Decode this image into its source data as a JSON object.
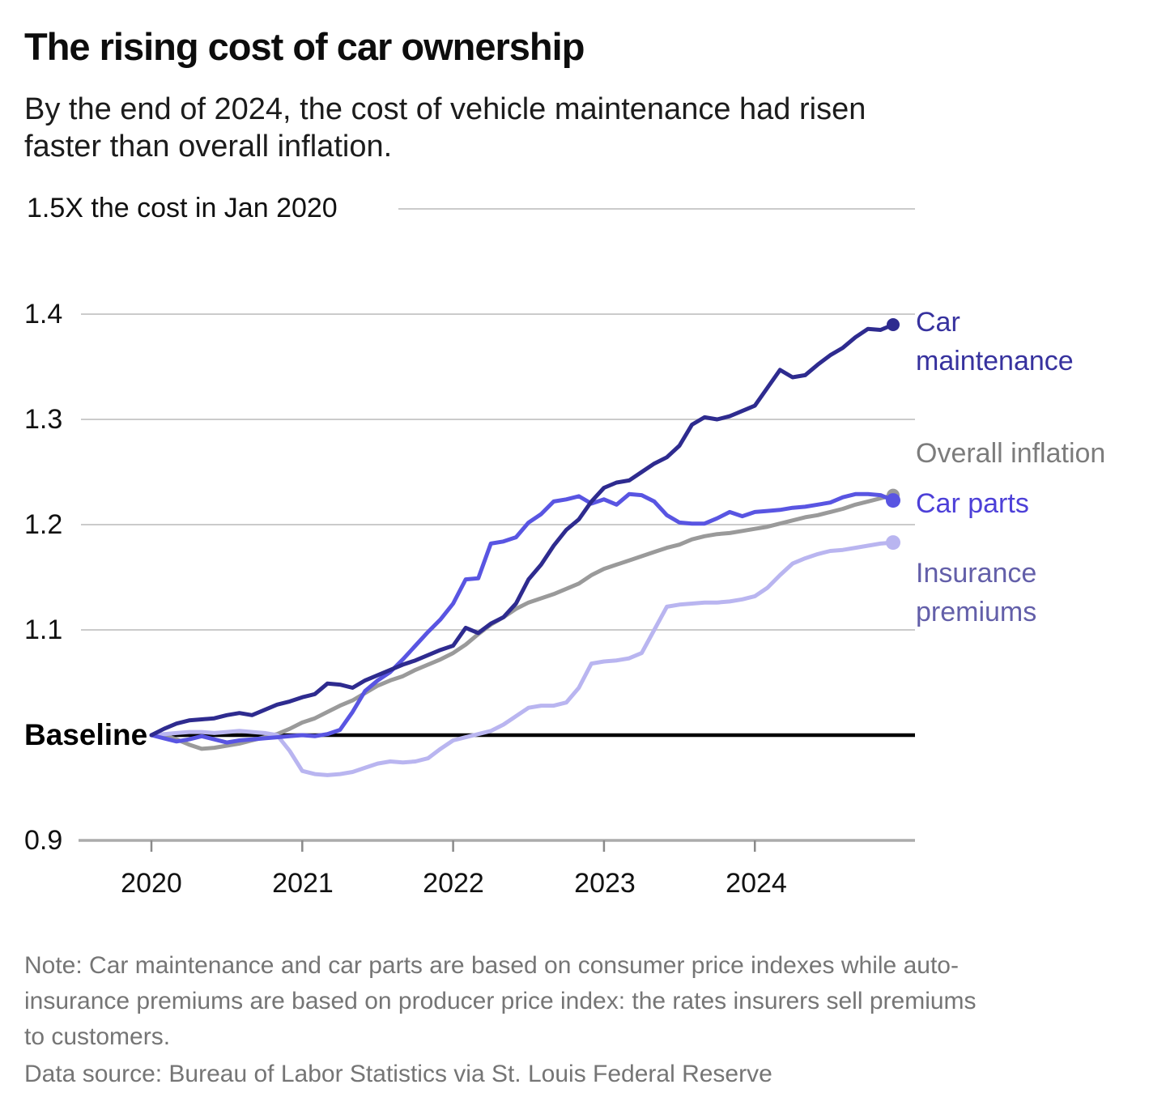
{
  "header": {
    "title": "The rising cost of car ownership",
    "subtitle": "By the end of 2024, the cost of vehicle maintenance had risen\nfaster than overall inflation."
  },
  "chart": {
    "y_axis": {
      "top_label": "1.5X the cost in Jan 2020",
      "tick_14": "1.4",
      "tick_13": "1.3",
      "tick_12": "1.2",
      "tick_11": "1.1",
      "tick_09": "0.9",
      "baseline_label": "Baseline"
    },
    "x_axis": {
      "ticks": [
        "2020",
        "2021",
        "2022",
        "2023",
        "2024"
      ]
    }
  },
  "chart_data": {
    "type": "line",
    "title": "The rising cost of car ownership",
    "x_unit": "month",
    "x_start": "2020-01",
    "x_end": "2024-12",
    "xlabel_ticks": [
      "2020",
      "2021",
      "2022",
      "2023",
      "2024"
    ],
    "ylabel": "Multiple of the cost in Jan 2020",
    "ylim": [
      0.9,
      1.5
    ],
    "baseline": 1.0,
    "grid": "horizontal",
    "legend_position": "right-of-line-ends",
    "colors": {
      "gridline": "#cbcbcb",
      "baseline": "#000000",
      "bottom_axis": "#ababab"
    },
    "series": [
      {
        "name": "Overall inflation",
        "color": "#9a9a9a",
        "label_color": "#7c7c7c",
        "end_value": 1.228,
        "values": [
          1.0,
          1.0,
          0.996,
          0.991,
          0.987,
          0.988,
          0.99,
          0.992,
          0.995,
          0.998,
          1.001,
          1.006,
          1.012,
          1.016,
          1.022,
          1.028,
          1.033,
          1.04,
          1.047,
          1.052,
          1.056,
          1.062,
          1.067,
          1.072,
          1.078,
          1.086,
          1.096,
          1.105,
          1.112,
          1.12,
          1.126,
          1.13,
          1.134,
          1.139,
          1.144,
          1.152,
          1.158,
          1.162,
          1.166,
          1.17,
          1.174,
          1.178,
          1.181,
          1.186,
          1.189,
          1.191,
          1.192,
          1.194,
          1.196,
          1.198,
          1.201,
          1.204,
          1.207,
          1.209,
          1.212,
          1.215,
          1.219,
          1.222,
          1.225,
          1.228
        ]
      },
      {
        "name": "Insurance premiums",
        "color": "#b9b5f0",
        "label_color": "#635fa9",
        "end_value": 1.183,
        "values": [
          1.0,
          1.001,
          1.002,
          1.003,
          1.003,
          1.002,
          1.003,
          1.004,
          1.003,
          1.002,
          1.0,
          0.985,
          0.966,
          0.963,
          0.962,
          0.963,
          0.965,
          0.969,
          0.973,
          0.975,
          0.974,
          0.975,
          0.978,
          0.987,
          0.995,
          0.998,
          1.001,
          1.004,
          1.01,
          1.018,
          1.026,
          1.028,
          1.028,
          1.031,
          1.045,
          1.068,
          1.07,
          1.071,
          1.073,
          1.078,
          1.1,
          1.122,
          1.124,
          1.125,
          1.126,
          1.126,
          1.127,
          1.129,
          1.132,
          1.14,
          1.152,
          1.163,
          1.168,
          1.172,
          1.175,
          1.176,
          1.178,
          1.18,
          1.182,
          1.183
        ]
      },
      {
        "name": "Car parts",
        "color": "#5955e2",
        "label_color": "#4d40d8",
        "end_value": 1.223,
        "values": [
          1.0,
          0.997,
          0.994,
          0.996,
          0.999,
          0.996,
          0.993,
          0.995,
          0.996,
          0.997,
          0.998,
          0.999,
          1.0,
          0.999,
          1.001,
          1.005,
          1.022,
          1.042,
          1.052,
          1.06,
          1.072,
          1.085,
          1.098,
          1.11,
          1.125,
          1.148,
          1.149,
          1.182,
          1.184,
          1.188,
          1.202,
          1.21,
          1.222,
          1.224,
          1.227,
          1.22,
          1.224,
          1.219,
          1.229,
          1.228,
          1.222,
          1.209,
          1.202,
          1.201,
          1.201,
          1.206,
          1.212,
          1.208,
          1.212,
          1.213,
          1.214,
          1.216,
          1.217,
          1.219,
          1.221,
          1.226,
          1.229,
          1.229,
          1.228,
          1.223
        ]
      },
      {
        "name": "Car maintenance",
        "color": "#2e2b8f",
        "label_color": "#37329e",
        "end_value": 1.39,
        "values": [
          1.0,
          1.006,
          1.011,
          1.014,
          1.015,
          1.016,
          1.019,
          1.021,
          1.019,
          1.024,
          1.029,
          1.032,
          1.036,
          1.039,
          1.049,
          1.048,
          1.045,
          1.052,
          1.057,
          1.062,
          1.067,
          1.071,
          1.076,
          1.081,
          1.085,
          1.102,
          1.097,
          1.106,
          1.112,
          1.125,
          1.148,
          1.162,
          1.18,
          1.195,
          1.205,
          1.222,
          1.235,
          1.24,
          1.242,
          1.25,
          1.258,
          1.264,
          1.275,
          1.295,
          1.302,
          1.3,
          1.303,
          1.308,
          1.313,
          1.33,
          1.347,
          1.34,
          1.342,
          1.352,
          1.361,
          1.368,
          1.378,
          1.386,
          1.385,
          1.39
        ]
      }
    ]
  },
  "footer": {
    "note": "Note: Car maintenance and car parts are based on consumer price indexes while auto-\ninsurance premiums are based on producer price index: the rates insurers sell premiums\nto customers.",
    "source": "Data source: Bureau of Labor Statistics via St. Louis Federal Reserve"
  }
}
